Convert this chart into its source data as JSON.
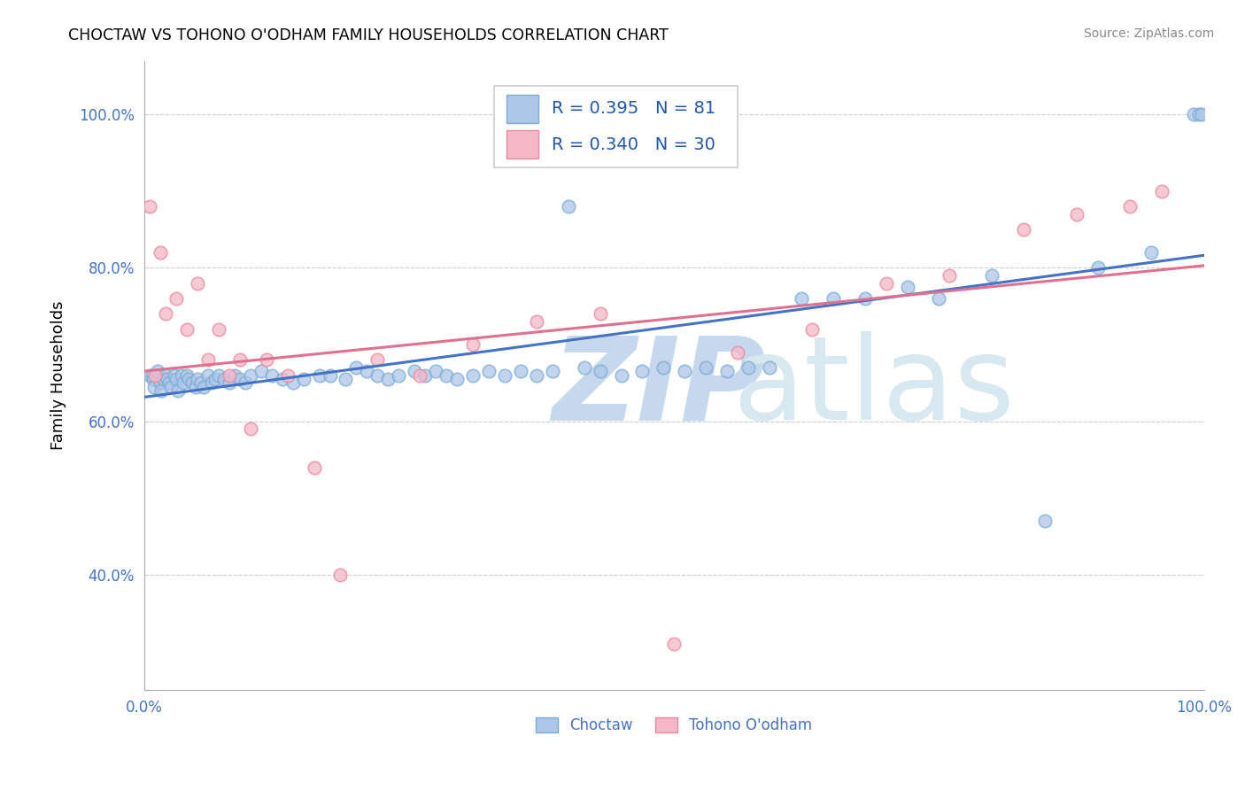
{
  "title": "CHOCTAW VS TOHONO O'ODHAM FAMILY HOUSEHOLDS CORRELATION CHART",
  "source": "Source: ZipAtlas.com",
  "ylabel": "Family Households",
  "xlim": [
    0.0,
    1.0
  ],
  "ylim": [
    0.25,
    1.07
  ],
  "y_ticks": [
    0.4,
    0.6,
    0.8,
    1.0
  ],
  "y_ticklabels": [
    "40.0%",
    "60.0%",
    "80.0%",
    "100.0%"
  ],
  "choctaw_color": "#aec6e8",
  "choctaw_edge_color": "#7badd4",
  "tohono_color": "#f5b8c8",
  "tohono_edge_color": "#e88aa0",
  "choctaw_line_color": "#4472c4",
  "tohono_line_color": "#e07090",
  "choctaw_R": 0.395,
  "choctaw_N": 81,
  "tohono_R": 0.34,
  "tohono_N": 30,
  "choctaw_x": [
    0.005,
    0.007,
    0.008,
    0.009,
    0.012,
    0.015,
    0.016,
    0.018,
    0.02,
    0.022,
    0.023,
    0.025,
    0.028,
    0.03,
    0.032,
    0.035,
    0.037,
    0.04,
    0.042,
    0.045,
    0.048,
    0.05,
    0.053,
    0.056,
    0.06,
    0.063,
    0.067,
    0.07,
    0.075,
    0.08,
    0.085,
    0.09,
    0.095,
    0.1,
    0.11,
    0.12,
    0.13,
    0.14,
    0.15,
    0.165,
    0.175,
    0.19,
    0.2,
    0.21,
    0.22,
    0.23,
    0.24,
    0.255,
    0.265,
    0.275,
    0.285,
    0.295,
    0.31,
    0.325,
    0.34,
    0.355,
    0.37,
    0.385,
    0.4,
    0.415,
    0.43,
    0.45,
    0.47,
    0.49,
    0.51,
    0.53,
    0.55,
    0.57,
    0.59,
    0.62,
    0.65,
    0.68,
    0.72,
    0.75,
    0.8,
    0.85,
    0.9,
    0.95,
    0.99,
    0.995,
    0.998
  ],
  "choctaw_y": [
    0.66,
    0.66,
    0.655,
    0.645,
    0.665,
    0.65,
    0.64,
    0.655,
    0.66,
    0.655,
    0.65,
    0.645,
    0.66,
    0.655,
    0.64,
    0.66,
    0.65,
    0.66,
    0.655,
    0.65,
    0.645,
    0.655,
    0.65,
    0.645,
    0.66,
    0.65,
    0.655,
    0.66,
    0.655,
    0.65,
    0.66,
    0.655,
    0.65,
    0.66,
    0.665,
    0.66,
    0.655,
    0.65,
    0.655,
    0.66,
    0.66,
    0.655,
    0.67,
    0.665,
    0.66,
    0.655,
    0.66,
    0.665,
    0.66,
    0.665,
    0.66,
    0.655,
    0.66,
    0.665,
    0.66,
    0.665,
    0.66,
    0.665,
    0.88,
    0.67,
    0.665,
    0.66,
    0.665,
    0.67,
    0.665,
    0.67,
    0.665,
    0.67,
    0.67,
    0.76,
    0.76,
    0.76,
    0.775,
    0.76,
    0.79,
    0.47,
    0.8,
    0.82,
    1.0,
    1.0,
    1.0
  ],
  "tohono_x": [
    0.005,
    0.01,
    0.015,
    0.02,
    0.03,
    0.04,
    0.05,
    0.06,
    0.07,
    0.08,
    0.09,
    0.1,
    0.115,
    0.135,
    0.16,
    0.185,
    0.22,
    0.26,
    0.31,
    0.37,
    0.43,
    0.5,
    0.56,
    0.63,
    0.7,
    0.76,
    0.83,
    0.88,
    0.93,
    0.96
  ],
  "tohono_y": [
    0.88,
    0.66,
    0.82,
    0.74,
    0.76,
    0.72,
    0.78,
    0.68,
    0.72,
    0.66,
    0.68,
    0.59,
    0.68,
    0.66,
    0.54,
    0.4,
    0.68,
    0.66,
    0.7,
    0.73,
    0.74,
    0.31,
    0.69,
    0.72,
    0.78,
    0.79,
    0.85,
    0.87,
    0.88,
    0.9
  ]
}
